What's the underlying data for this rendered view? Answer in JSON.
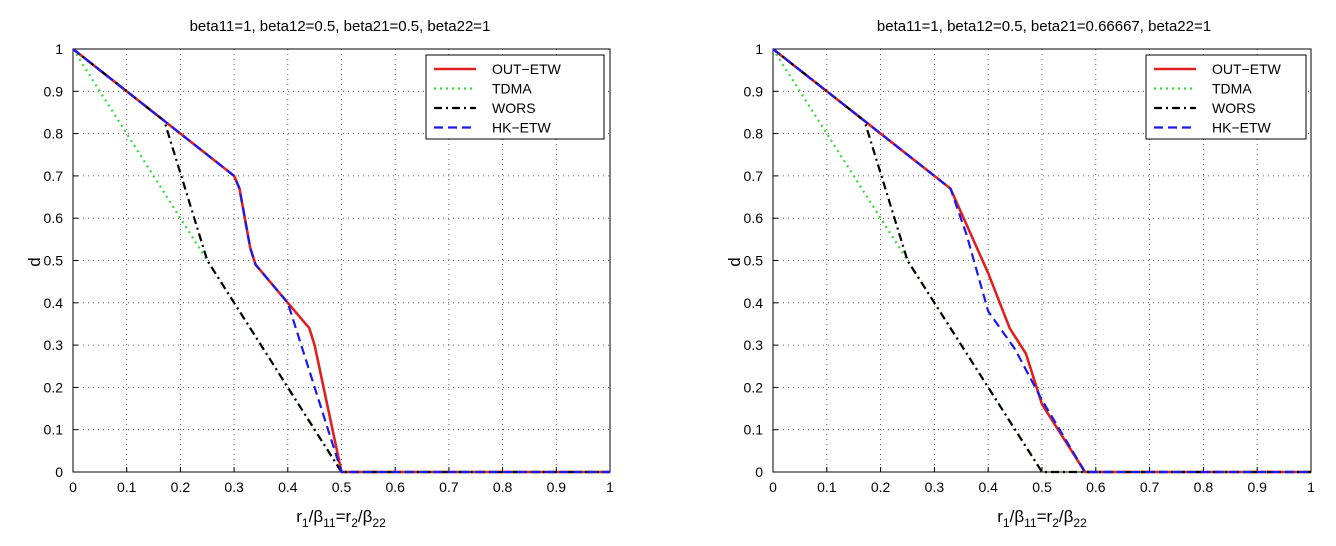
{
  "chart_data": [
    {
      "type": "line",
      "title": "beta11=1, beta12=0.5, beta21=0.5, beta22=1",
      "ylabel": "d",
      "xlabel": {
        "r1": "r",
        "s1": "1",
        "slash1": "/β",
        "s2": "11",
        "eq": "=r",
        "s3": "2",
        "slash2": "/β",
        "s4": "22"
      },
      "xlim": [
        0,
        1
      ],
      "ylim": [
        0,
        1
      ],
      "xticks": [
        "0",
        "0.1",
        "0.2",
        "0.3",
        "0.4",
        "0.5",
        "0.6",
        "0.7",
        "0.8",
        "0.9",
        "1"
      ],
      "yticks": [
        "0",
        "0.1",
        "0.2",
        "0.3",
        "0.4",
        "0.5",
        "0.6",
        "0.7",
        "0.8",
        "0.9",
        "1"
      ],
      "grid": true,
      "legend": "top-right",
      "series": [
        {
          "name": "OUT−ETW",
          "color": "#e02020",
          "style": "solid",
          "x": [
            0,
            0.17,
            0.3,
            0.31,
            0.33,
            0.34,
            0.4,
            0.44,
            0.45,
            0.5,
            1
          ],
          "y": [
            1,
            0.83,
            0.7,
            0.67,
            0.53,
            0.49,
            0.4,
            0.34,
            0.3,
            0,
            0
          ]
        },
        {
          "name": "TDMA",
          "color": "#33dd33",
          "style": "dotted",
          "x": [
            0,
            0.5,
            1
          ],
          "y": [
            1,
            0,
            0
          ]
        },
        {
          "name": "WORS",
          "color": "#000000",
          "style": "dashdot",
          "x": [
            0,
            0.17,
            0.25,
            0.5,
            1
          ],
          "y": [
            1,
            0.83,
            0.5,
            0,
            0
          ]
        },
        {
          "name": "HK−ETW",
          "color": "#1a1aee",
          "style": "dashed",
          "x": [
            0,
            0.17,
            0.3,
            0.31,
            0.33,
            0.34,
            0.4,
            0.5,
            1
          ],
          "y": [
            1,
            0.83,
            0.7,
            0.67,
            0.53,
            0.49,
            0.4,
            0,
            0
          ]
        }
      ]
    },
    {
      "type": "line",
      "title": "beta11=1, beta12=0.5, beta21=0.66667, beta22=1",
      "ylabel": "d",
      "xlabel": {
        "r1": "r",
        "s1": "1",
        "slash1": "/β",
        "s2": "11",
        "eq": "=r",
        "s3": "2",
        "slash2": "/β",
        "s4": "22"
      },
      "xlim": [
        0,
        1
      ],
      "ylim": [
        0,
        1
      ],
      "xticks": [
        "0",
        "0.1",
        "0.2",
        "0.3",
        "0.4",
        "0.5",
        "0.6",
        "0.7",
        "0.8",
        "0.9",
        "1"
      ],
      "yticks": [
        "0",
        "0.1",
        "0.2",
        "0.3",
        "0.4",
        "0.5",
        "0.6",
        "0.7",
        "0.8",
        "0.9",
        "1"
      ],
      "grid": true,
      "legend": "top-right",
      "series": [
        {
          "name": "OUT−ETW",
          "color": "#e02020",
          "style": "solid",
          "x": [
            0,
            0.17,
            0.33,
            0.4,
            0.44,
            0.47,
            0.5,
            0.58,
            1
          ],
          "y": [
            1,
            0.83,
            0.67,
            0.47,
            0.34,
            0.28,
            0.16,
            0,
            0
          ]
        },
        {
          "name": "TDMA",
          "color": "#33dd33",
          "style": "dotted",
          "x": [
            0,
            0.5,
            1
          ],
          "y": [
            1,
            0,
            0
          ]
        },
        {
          "name": "WORS",
          "color": "#000000",
          "style": "dashdot",
          "x": [
            0,
            0.17,
            0.25,
            0.5,
            1
          ],
          "y": [
            1,
            0.83,
            0.5,
            0,
            0
          ]
        },
        {
          "name": "HK−ETW",
          "color": "#1a1aee",
          "style": "dashed",
          "x": [
            0,
            0.17,
            0.33,
            0.36,
            0.4,
            0.45,
            0.5,
            0.58,
            1
          ],
          "y": [
            1,
            0.83,
            0.67,
            0.56,
            0.38,
            0.29,
            0.17,
            0,
            0
          ]
        }
      ]
    }
  ]
}
